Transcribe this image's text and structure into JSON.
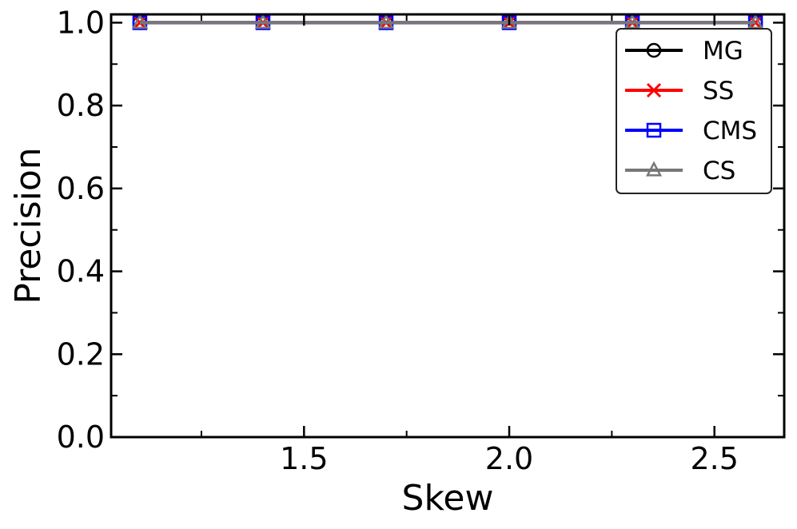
{
  "chart_data": {
    "type": "line",
    "x": [
      1.1,
      1.4,
      1.7,
      2.0,
      2.3,
      2.6
    ],
    "series": [
      {
        "name": "MG",
        "values": [
          1.0,
          1.0,
          1.0,
          1.0,
          1.0,
          1.0
        ],
        "color": "#000000",
        "marker": "circle"
      },
      {
        "name": "SS",
        "values": [
          1.0,
          1.0,
          1.0,
          1.0,
          1.0,
          1.0
        ],
        "color": "#ff0000",
        "marker": "x"
      },
      {
        "name": "CMS",
        "values": [
          1.0,
          1.0,
          1.0,
          1.0,
          1.0,
          1.0
        ],
        "color": "#0000ff",
        "marker": "square"
      },
      {
        "name": "CS",
        "values": [
          1.0,
          1.0,
          1.0,
          1.0,
          1.0,
          1.0
        ],
        "color": "#777777",
        "marker": "triangle"
      }
    ],
    "xlabel": "Skew",
    "ylabel": "Precision",
    "xlim": [
      1.03,
      2.67
    ],
    "ylim": [
      0.0,
      1.02
    ],
    "xticks": [
      1.5,
      2.0,
      2.5
    ],
    "xticks_minor": [
      1.25,
      1.75,
      2.25
    ],
    "xtick_labels": [
      "1.5",
      "2.0",
      "2.5"
    ],
    "yticks": [
      0.0,
      0.2,
      0.4,
      0.6,
      0.8,
      1.0
    ],
    "yticks_minor": [
      0.1,
      0.3,
      0.5,
      0.7,
      0.9
    ],
    "ytick_labels": [
      "0.0",
      "0.2",
      "0.4",
      "0.6",
      "0.8",
      "1.0"
    ],
    "grid": false,
    "legend_position": "top-right"
  }
}
